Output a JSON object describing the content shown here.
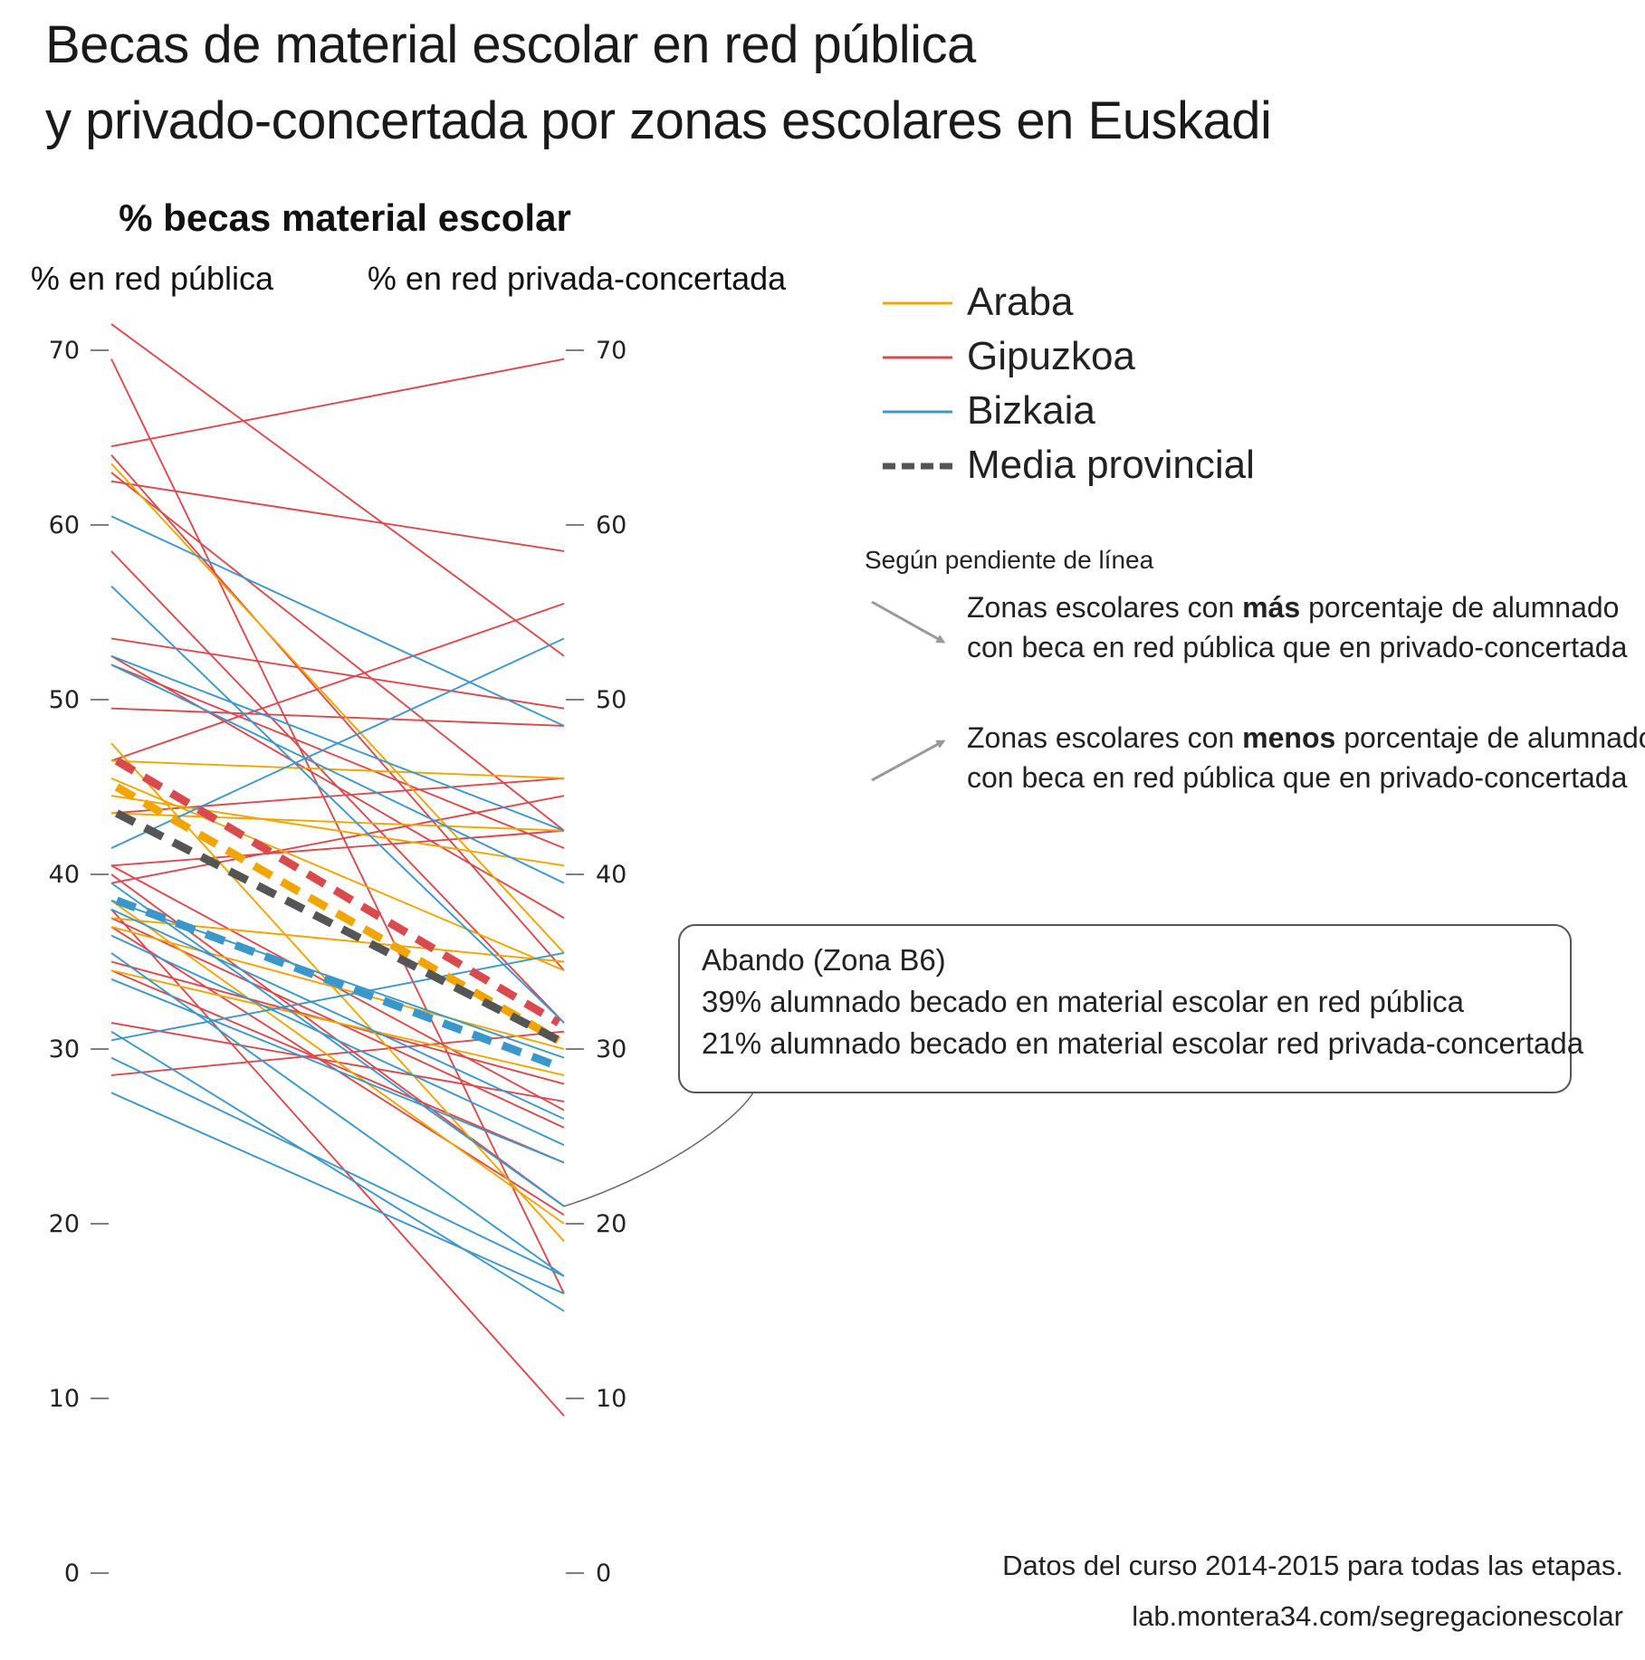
{
  "title": {
    "line1": "Becas de material escolar en red pública",
    "line2": "y privado-concertada por zonas escolares en Euskadi"
  },
  "chart_data": {
    "type": "line",
    "subtitle": "% becas material escolar",
    "left_axis_label": "% en red pública",
    "right_axis_label": "% en red privada-concertada",
    "x": [
      "% en red pública",
      "% en red privada-concertada"
    ],
    "ylim": [
      0,
      70
    ],
    "yticks": [
      0,
      10,
      20,
      30,
      40,
      50,
      60,
      70
    ],
    "grid": false,
    "legend_position": "top-right",
    "legend": [
      {
        "label": "Araba",
        "color": "#f0a500",
        "style": "solid"
      },
      {
        "label": "Gipuzkoa",
        "color": "#d94a4f",
        "style": "solid"
      },
      {
        "label": "Bizkaia",
        "color": "#3b97c9",
        "style": "solid"
      },
      {
        "label": "Media provincial",
        "color": "#555555",
        "style": "dashed"
      }
    ],
    "colors": {
      "Araba": "#f0a500",
      "Gipuzkoa": "#d94a4f",
      "Bizkaia": "#3b97c9",
      "Media": "#555555"
    },
    "series": {
      "Araba": [
        [
          63.5,
          35.5
        ],
        [
          47.5,
          19
        ],
        [
          46.5,
          45.5
        ],
        [
          45.5,
          34.5
        ],
        [
          44.5,
          40.5
        ],
        [
          43.5,
          42.5
        ],
        [
          37.5,
          35
        ],
        [
          37,
          30
        ],
        [
          34.5,
          28.5
        ],
        [
          38.5,
          20
        ]
      ],
      "Gipuzkoa": [
        [
          71.5,
          52.5
        ],
        [
          69.5,
          16
        ],
        [
          64.5,
          69.5
        ],
        [
          64,
          34.5
        ],
        [
          62.5,
          58.5
        ],
        [
          63,
          42.5
        ],
        [
          58.5,
          31.5
        ],
        [
          53.5,
          49.5
        ],
        [
          52.5,
          37.5
        ],
        [
          52,
          41.5
        ],
        [
          49.5,
          48.5
        ],
        [
          46.5,
          55.5
        ],
        [
          43.5,
          45.5
        ],
        [
          40.5,
          42.5
        ],
        [
          40.5,
          26.5
        ],
        [
          40,
          21
        ],
        [
          39.5,
          44.5
        ],
        [
          38,
          9
        ],
        [
          37.5,
          25.5
        ],
        [
          37,
          20.5
        ],
        [
          35,
          28
        ],
        [
          34.5,
          23.5
        ],
        [
          31.5,
          27
        ],
        [
          28.5,
          31
        ]
      ],
      "Bizkaia": [
        [
          60.5,
          48.5
        ],
        [
          56.5,
          31.5
        ],
        [
          52.5,
          42.5
        ],
        [
          52,
          39.5
        ],
        [
          41.5,
          53.5
        ],
        [
          39.5,
          21
        ],
        [
          38.5,
          29.5
        ],
        [
          38,
          26
        ],
        [
          36.5,
          24.5
        ],
        [
          35.5,
          17
        ],
        [
          34,
          23.5
        ],
        [
          31,
          15
        ],
        [
          30.5,
          35.5
        ],
        [
          29.5,
          17
        ],
        [
          27.5,
          16
        ]
      ],
      "Media": {
        "Araba": [
          45,
          30.5
        ],
        "Gipuzkoa": [
          46.5,
          31.5
        ],
        "Bizkaia": [
          38.5,
          29
        ],
        "Total": [
          43.5,
          30.5
        ]
      }
    },
    "annotation": {
      "title": "Abando (Zona B6)",
      "line1": "39% alumnado becado en material escolar en red pública",
      "line2": "21% alumnado becado en material escolar  red privada-concertada"
    },
    "slope_legend": {
      "title": "Según pendiente de línea",
      "down_prefix": "Zonas escolares con ",
      "down_bold": "más",
      "down_suffix": " porcentaje de alumnado",
      "down_line2": "con beca en red pública que en privado-concertada",
      "up_prefix": "Zonas escolares con ",
      "up_bold": "menos",
      "up_suffix": " porcentaje de alumnado",
      "up_line2": "con beca en red pública que en privado-concertada"
    }
  },
  "footer": {
    "line1": "Datos del curso 2014-2015 para todas las etapas.",
    "line2": "lab.montera34.com/segregacionescolar"
  }
}
